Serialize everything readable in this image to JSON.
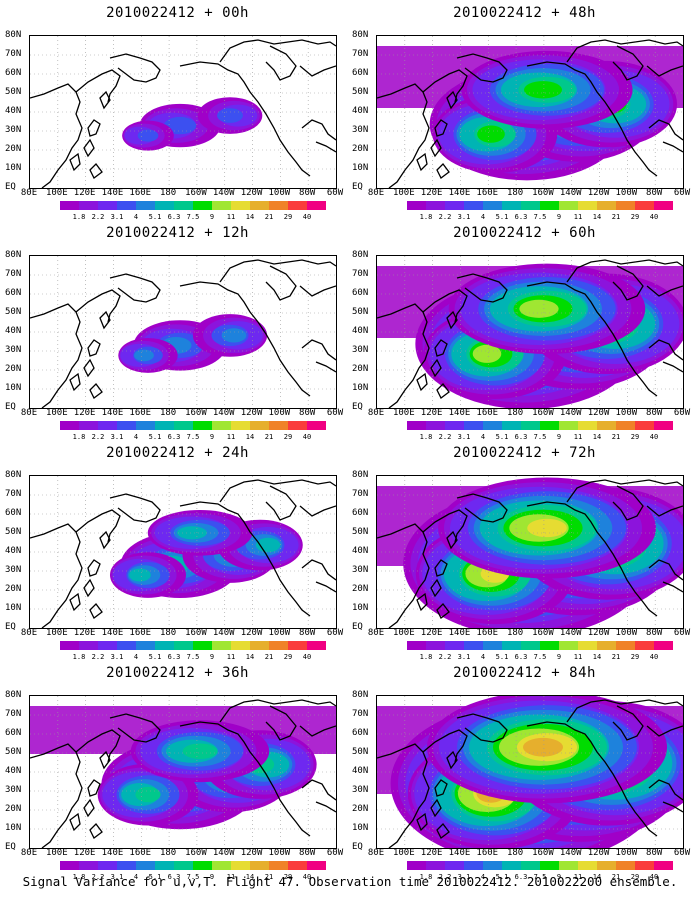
{
  "panels": [
    {
      "title": "2010022412 + 00h",
      "intensity": 0.35
    },
    {
      "title": "2010022412 + 48h",
      "intensity": 1.55
    },
    {
      "title": "2010022412 + 12h",
      "intensity": 0.5
    },
    {
      "title": "2010022412 + 60h",
      "intensity": 1.8
    },
    {
      "title": "2010022412 + 24h",
      "intensity": 0.8
    },
    {
      "title": "2010022412 + 72h",
      "intensity": 2.0
    },
    {
      "title": "2010022412 + 36h",
      "intensity": 1.2
    },
    {
      "title": "2010022412 + 84h",
      "intensity": 2.2
    }
  ],
  "lat_labels": [
    "80N",
    "70N",
    "60N",
    "50N",
    "40N",
    "30N",
    "20N",
    "10N",
    "EQ"
  ],
  "lon_labels": [
    "80E",
    "100E",
    "120E",
    "140E",
    "160E",
    "180",
    "160W",
    "140W",
    "120W",
    "100W",
    "80W",
    "60W"
  ],
  "colorbar": {
    "labels": [
      "1.8",
      "2.2",
      "3.1",
      "4",
      "5.1",
      "6.3",
      "7.5",
      "9",
      "11",
      "14",
      "21",
      "29",
      "40"
    ],
    "colors": [
      "#a000c8",
      "#8c14dc",
      "#6e28f0",
      "#3c50f0",
      "#1e82dc",
      "#00b4b4",
      "#00c88c",
      "#00dc00",
      "#a0e632",
      "#e6dc32",
      "#e6af2d",
      "#f08228",
      "#fa3c3c",
      "#f00082"
    ]
  },
  "footer": "Signal Variance for u,v,T. Flight 47. Observation time 2010022412. 2010022200 ensemble."
}
